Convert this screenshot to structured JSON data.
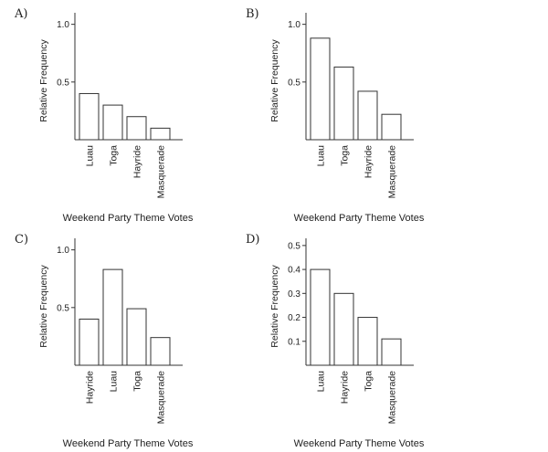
{
  "chart_data": [
    {
      "panel": "A)",
      "type": "bar",
      "categories": [
        "Luau",
        "Toga",
        "Hayride",
        "Masquerade"
      ],
      "values": [
        0.4,
        0.3,
        0.2,
        0.1
      ],
      "ylabel": "Relative Frequency",
      "xlabel": "Weekend Party Theme Votes",
      "ylim": [
        0,
        1.1
      ],
      "yticks": [
        0.5,
        1.0
      ],
      "ytick_labels": [
        "0.5",
        "1.0"
      ]
    },
    {
      "panel": "B)",
      "type": "bar",
      "categories": [
        "Luau",
        "Toga",
        "Hayride",
        "Masquerade"
      ],
      "values": [
        0.88,
        0.63,
        0.42,
        0.22
      ],
      "ylabel": "Relative Frequency",
      "xlabel": "Weekend Party Theme Votes",
      "ylim": [
        0,
        1.1
      ],
      "yticks": [
        0.5,
        1.0
      ],
      "ytick_labels": [
        "0.5",
        "1.0"
      ]
    },
    {
      "panel": "C)",
      "type": "bar",
      "categories": [
        "Hayride",
        "Luau",
        "Toga",
        "Masquerade"
      ],
      "values": [
        0.4,
        0.83,
        0.49,
        0.24
      ],
      "ylabel": "Relative Frequency",
      "xlabel": "Weekend Party Theme Votes",
      "ylim": [
        0,
        1.1
      ],
      "yticks": [
        0.5,
        1.0
      ],
      "ytick_labels": [
        "0.5",
        "1.0"
      ]
    },
    {
      "panel": "D)",
      "type": "bar",
      "categories": [
        "Luau",
        "Hayride",
        "Toga",
        "Masquerade"
      ],
      "values": [
        0.4,
        0.3,
        0.2,
        0.11
      ],
      "ylabel": "Relative Frequency",
      "xlabel": "Weekend Party Theme Votes",
      "ylim": [
        0,
        0.53
      ],
      "yticks": [
        0.1,
        0.2,
        0.3,
        0.4,
        0.5
      ],
      "ytick_labels": [
        "0.1",
        "0.2",
        "0.3",
        "0.4",
        "0.5"
      ]
    }
  ]
}
